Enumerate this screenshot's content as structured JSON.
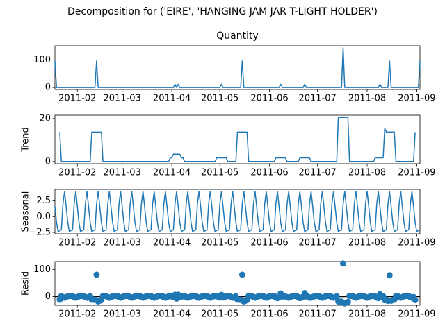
{
  "title": "Decomposition for ('EIRE', 'HANGING JAM JAR T-LIGHT HOLDER')",
  "chart_data": {
    "color": "#1f77b4",
    "xlim": [
      14992,
      15220
    ],
    "xticks": [
      {
        "value": 15006,
        "label": "2011-02"
      },
      {
        "value": 15034,
        "label": "2011-03"
      },
      {
        "value": 15065,
        "label": "2011-04"
      },
      {
        "value": 15095,
        "label": "2011-05"
      },
      {
        "value": 15126,
        "label": "2011-06"
      },
      {
        "value": 15156,
        "label": "2011-07"
      },
      {
        "value": 15187,
        "label": "2011-08"
      },
      {
        "value": 15218,
        "label": "2011-09"
      }
    ],
    "x": [
      14992,
      14993,
      14994,
      14995,
      14996,
      14997,
      14998,
      14999,
      15000,
      15001,
      15002,
      15003,
      15004,
      15005,
      15006,
      15007,
      15008,
      15009,
      15010,
      15011,
      15012,
      15013,
      15014,
      15015,
      15016,
      15017,
      15018,
      15019,
      15020,
      15021,
      15022,
      15023,
      15024,
      15025,
      15026,
      15027,
      15028,
      15029,
      15030,
      15031,
      15032,
      15033,
      15034,
      15035,
      15036,
      15037,
      15038,
      15039,
      15040,
      15041,
      15042,
      15043,
      15044,
      15045,
      15046,
      15047,
      15048,
      15049,
      15050,
      15051,
      15052,
      15053,
      15054,
      15055,
      15056,
      15057,
      15058,
      15059,
      15060,
      15061,
      15062,
      15063,
      15064,
      15065,
      15066,
      15067,
      15068,
      15069,
      15070,
      15071,
      15072,
      15073,
      15074,
      15075,
      15076,
      15077,
      15078,
      15079,
      15080,
      15081,
      15082,
      15083,
      15084,
      15085,
      15086,
      15087,
      15088,
      15089,
      15090,
      15091,
      15092,
      15093,
      15094,
      15095,
      15096,
      15097,
      15098,
      15099,
      15100,
      15101,
      15102,
      15103,
      15104,
      15105,
      15106,
      15107,
      15108,
      15109,
      15110,
      15111,
      15112,
      15113,
      15114,
      15115,
      15116,
      15117,
      15118,
      15119,
      15120,
      15121,
      15122,
      15123,
      15124,
      15125,
      15126,
      15127,
      15128,
      15129,
      15130,
      15131,
      15132,
      15133,
      15134,
      15135,
      15136,
      15137,
      15138,
      15139,
      15140,
      15141,
      15142,
      15143,
      15144,
      15145,
      15146,
      15147,
      15148,
      15149,
      15150,
      15151,
      15152,
      15153,
      15154,
      15155,
      15156,
      15157,
      15158,
      15159,
      15160,
      15161,
      15162,
      15163,
      15164,
      15165,
      15166,
      15167,
      15168,
      15169,
      15170,
      15171,
      15172,
      15173,
      15174,
      15175,
      15176,
      15177,
      15178,
      15179,
      15180,
      15181,
      15182,
      15183,
      15184,
      15185,
      15186,
      15187,
      15188,
      15189,
      15190,
      15191,
      15192,
      15193,
      15194,
      15195,
      15196,
      15197,
      15198,
      15199,
      15200,
      15201,
      15202,
      15203,
      15204,
      15205,
      15206,
      15207,
      15208,
      15209,
      15210,
      15211,
      15212,
      15213,
      15214,
      15215,
      15216,
      15217,
      15218,
      15219,
      15220
    ],
    "panels": [
      {
        "type": "line",
        "title": "Quantity",
        "ylim": [
          -7.2,
          151.2
        ],
        "yticks": [
          0,
          100
        ],
        "values": [
          96,
          0,
          0,
          0,
          0,
          0,
          0,
          0,
          0,
          0,
          0,
          0,
          0,
          0,
          0,
          0,
          0,
          0,
          0,
          0,
          0,
          0,
          0,
          0,
          0,
          0,
          96,
          0,
          0,
          0,
          0,
          0,
          0,
          0,
          0,
          0,
          0,
          0,
          0,
          0,
          0,
          0,
          0,
          0,
          0,
          0,
          0,
          0,
          0,
          0,
          0,
          0,
          0,
          0,
          0,
          0,
          0,
          0,
          0,
          0,
          0,
          0,
          0,
          0,
          0,
          0,
          0,
          0,
          0,
          0,
          0,
          0,
          0,
          0,
          0,
          12,
          0,
          12,
          0,
          0,
          0,
          0,
          0,
          0,
          0,
          0,
          0,
          0,
          0,
          0,
          0,
          0,
          0,
          0,
          0,
          0,
          0,
          0,
          0,
          0,
          0,
          0,
          0,
          0,
          12,
          0,
          0,
          0,
          0,
          0,
          0,
          0,
          0,
          0,
          0,
          0,
          0,
          96,
          0,
          0,
          0,
          0,
          0,
          0,
          0,
          0,
          0,
          0,
          0,
          0,
          0,
          0,
          0,
          0,
          0,
          0,
          0,
          0,
          0,
          0,
          0,
          12,
          0,
          0,
          0,
          0,
          0,
          0,
          0,
          0,
          0,
          0,
          0,
          0,
          0,
          0,
          12,
          0,
          0,
          0,
          0,
          0,
          0,
          0,
          0,
          0,
          0,
          0,
          0,
          0,
          0,
          0,
          0,
          0,
          0,
          0,
          0,
          0,
          0,
          0,
          144,
          0,
          0,
          0,
          0,
          0,
          0,
          0,
          0,
          0,
          0,
          0,
          0,
          0,
          0,
          0,
          0,
          0,
          0,
          0,
          0,
          0,
          0,
          12,
          0,
          0,
          0,
          0,
          0,
          96,
          0,
          0,
          0,
          0,
          0,
          0,
          0,
          0,
          0,
          0,
          0,
          0,
          0,
          0,
          0,
          0,
          0,
          0,
          96
        ]
      },
      {
        "type": "line",
        "ylabel": "Trend",
        "ylim": [
          -1.03,
          21.6
        ],
        "yticks": [
          0,
          20
        ],
        "values": [
          null,
          null,
          null,
          13.71,
          0,
          0,
          0,
          0,
          0,
          0,
          0,
          0,
          0,
          0,
          0,
          0,
          0,
          0,
          0,
          0,
          0,
          0,
          0,
          13.71,
          13.71,
          13.71,
          13.71,
          13.71,
          13.71,
          13.71,
          0,
          0,
          0,
          0,
          0,
          0,
          0,
          0,
          0,
          0,
          0,
          0,
          0,
          0,
          0,
          0,
          0,
          0,
          0,
          0,
          0,
          0,
          0,
          0,
          0,
          0,
          0,
          0,
          0,
          0,
          0,
          0,
          0,
          0,
          0,
          0,
          0,
          0,
          0,
          0,
          0,
          0,
          1.71,
          1.71,
          3.43,
          3.43,
          3.43,
          3.43,
          3.43,
          1.71,
          1.71,
          0,
          0,
          0,
          0,
          0,
          0,
          0,
          0,
          0,
          0,
          0,
          0,
          0,
          0,
          0,
          0,
          0,
          0,
          0,
          0,
          1.71,
          1.71,
          1.71,
          1.71,
          1.71,
          1.71,
          1.71,
          0,
          0,
          0,
          0,
          0,
          0,
          13.71,
          13.71,
          13.71,
          13.71,
          13.71,
          13.71,
          13.71,
          0,
          0,
          0,
          0,
          0,
          0,
          0,
          0,
          0,
          0,
          0,
          0,
          0,
          0,
          0,
          0,
          0,
          1.71,
          1.71,
          1.71,
          1.71,
          1.71,
          1.71,
          1.71,
          0,
          0,
          0,
          0,
          0,
          0,
          0,
          0,
          1.71,
          1.71,
          1.71,
          1.71,
          1.71,
          1.71,
          1.71,
          0,
          0,
          0,
          0,
          0,
          0,
          0,
          0,
          0,
          0,
          0,
          0,
          0,
          0,
          0,
          0,
          0,
          20.57,
          20.57,
          20.57,
          20.57,
          20.57,
          20.57,
          20.57,
          0,
          0,
          0,
          0,
          0,
          0,
          0,
          0,
          0,
          0,
          0,
          0,
          0,
          0,
          0,
          0,
          1.71,
          1.71,
          1.71,
          1.71,
          1.71,
          1.71,
          15.43,
          13.71,
          13.71,
          13.71,
          13.71,
          13.71,
          13.71,
          0,
          0,
          0,
          0,
          0,
          0,
          0,
          0,
          0,
          0,
          0,
          0,
          13.71,
          null,
          null,
          null
        ]
      },
      {
        "type": "line",
        "ylabel": "Seasonal",
        "ylim": [
          -2.72,
          4.32
        ],
        "yticks": [
          {
            "value": -2.5,
            "label": "−2.5"
          },
          {
            "value": 0,
            "label": "0.0"
          },
          {
            "value": 2.5,
            "label": "2.5"
          }
        ],
        "values": [
          1.6,
          -0.9,
          -2.4,
          -2.2,
          -2.1,
          2.0,
          4.0,
          1.6,
          -0.9,
          -2.4,
          -2.2,
          -2.1,
          2.0,
          4.0,
          1.6,
          -0.9,
          -2.4,
          -2.2,
          -2.1,
          2.0,
          4.0,
          1.6,
          -0.9,
          -2.4,
          -2.2,
          -2.1,
          2.0,
          4.0,
          1.6,
          -0.9,
          -2.4,
          -2.2,
          -2.1,
          2.0,
          4.0,
          1.6,
          -0.9,
          -2.4,
          -2.2,
          -2.1,
          2.0,
          4.0,
          1.6,
          -0.9,
          -2.4,
          -2.2,
          -2.1,
          2.0,
          4.0,
          1.6,
          -0.9,
          -2.4,
          -2.2,
          -2.1,
          2.0,
          4.0,
          1.6,
          -0.9,
          -2.4,
          -2.2,
          -2.1,
          2.0,
          4.0,
          1.6,
          -0.9,
          -2.4,
          -2.2,
          -2.1,
          2.0,
          4.0,
          1.6,
          -0.9,
          -2.4,
          -2.2,
          -2.1,
          2.0,
          4.0,
          1.6,
          -0.9,
          -2.4,
          -2.2,
          -2.1,
          2.0,
          4.0,
          1.6,
          -0.9,
          -2.4,
          -2.2,
          -2.1,
          2.0,
          4.0,
          1.6,
          -0.9,
          -2.4,
          -2.2,
          -2.1,
          2.0,
          4.0,
          1.6,
          -0.9,
          -2.4,
          -2.2,
          -2.1,
          2.0,
          4.0,
          1.6,
          -0.9,
          -2.4,
          -2.2,
          -2.1,
          2.0,
          4.0,
          1.6,
          -0.9,
          -2.4,
          -2.2,
          -2.1,
          2.0,
          4.0,
          1.6,
          -0.9,
          -2.4,
          -2.2,
          -2.1,
          2.0,
          4.0,
          1.6,
          -0.9,
          -2.4,
          -2.2,
          -2.1,
          2.0,
          4.0,
          1.6,
          -0.9,
          -2.4,
          -2.2,
          -2.1,
          2.0,
          4.0,
          1.6,
          -0.9,
          -2.4,
          -2.2,
          -2.1,
          2.0,
          4.0,
          1.6,
          -0.9,
          -2.4,
          -2.2,
          -2.1,
          2.0,
          4.0,
          1.6,
          -0.9,
          -2.4,
          -2.2,
          -2.1,
          2.0,
          4.0,
          1.6,
          -0.9,
          -2.4,
          -2.2,
          -2.1,
          2.0,
          4.0,
          1.6,
          -0.9,
          -2.4,
          -2.2,
          -2.1,
          2.0,
          4.0,
          1.6,
          -0.9,
          -2.4,
          -2.2,
          -2.1,
          2.0,
          4.0,
          1.6,
          -0.9,
          -2.4,
          -2.2,
          -2.1,
          2.0,
          4.0,
          1.6,
          -0.9,
          -2.4,
          -2.2,
          -2.1,
          2.0,
          4.0,
          1.6,
          -0.9,
          -2.4,
          -2.2,
          -2.1,
          2.0,
          4.0,
          1.6,
          -0.9,
          -2.4,
          -2.2,
          -2.1,
          2.0,
          4.0,
          1.6,
          -0.9,
          -2.4,
          -2.2,
          -2.1,
          2.0,
          4.0,
          1.6,
          -0.9,
          -2.4,
          -2.2,
          -2.1,
          2.0,
          4.0,
          1.6,
          -0.9,
          -2.4,
          -2.2,
          -2.1
        ]
      },
      {
        "type": "scatter",
        "ylabel": "Resid",
        "ylim": [
          -31.87,
          128.73
        ],
        "yticks": [
          0,
          100
        ],
        "values": [
          null,
          null,
          null,
          -11.51,
          2.1,
          -2.0,
          -4.0,
          -1.6,
          0.9,
          2.4,
          2.2,
          2.1,
          -2.0,
          -4.0,
          -1.6,
          0.9,
          2.4,
          2.2,
          2.1,
          -2.0,
          -4.0,
          -1.6,
          0.9,
          -11.31,
          -11.51,
          -11.61,
          80.29,
          -17.71,
          -15.31,
          -12.81,
          2.4,
          2.2,
          2.1,
          -2.0,
          -4.0,
          -1.6,
          0.9,
          2.4,
          2.2,
          2.1,
          -2.0,
          -4.0,
          -1.6,
          0.9,
          2.4,
          2.2,
          2.1,
          -2.0,
          -4.0,
          -1.6,
          0.9,
          2.4,
          2.2,
          2.1,
          -2.0,
          -4.0,
          -1.6,
          0.9,
          2.4,
          2.2,
          2.1,
          -2.0,
          -4.0,
          -1.6,
          0.9,
          2.4,
          2.2,
          2.1,
          -2.0,
          -4.0,
          -1.6,
          0.9,
          0.69,
          0.49,
          -1.33,
          6.57,
          -7.43,
          6.97,
          -2.53,
          0.69,
          0.49,
          2.1,
          -2.0,
          -4.0,
          -1.6,
          0.9,
          2.4,
          2.2,
          2.1,
          -2.0,
          -4.0,
          -1.6,
          0.9,
          2.4,
          2.2,
          2.1,
          -2.0,
          -4.0,
          -1.6,
          0.9,
          2.4,
          0.49,
          0.39,
          -3.71,
          6.29,
          -3.31,
          -0.81,
          0.69,
          2.2,
          2.1,
          -2.0,
          -4.0,
          -1.6,
          0.9,
          -11.31,
          -11.51,
          -11.61,
          80.29,
          -17.71,
          -15.31,
          -12.81,
          2.4,
          2.2,
          2.1,
          -2.0,
          -4.0,
          -1.6,
          0.9,
          2.4,
          2.2,
          2.1,
          -2.0,
          -4.0,
          -1.6,
          0.9,
          2.4,
          2.2,
          2.1,
          -3.71,
          -5.71,
          -3.31,
          11.19,
          0.69,
          0.49,
          0.39,
          -2.0,
          -4.0,
          -1.6,
          0.9,
          2.4,
          2.2,
          2.1,
          -2.0,
          -5.71,
          -3.31,
          -0.81,
          12.69,
          0.49,
          0.39,
          -3.71,
          -4.0,
          -1.6,
          0.9,
          2.4,
          2.2,
          2.1,
          -2.0,
          -4.0,
          -1.6,
          0.9,
          2.4,
          2.2,
          2.1,
          -2.0,
          -4.0,
          -1.6,
          0.9,
          -18.17,
          -18.37,
          -18.47,
          121.43,
          -24.57,
          -22.17,
          -19.67,
          2.4,
          2.2,
          2.1,
          -2.0,
          -4.0,
          -1.6,
          0.9,
          2.4,
          2.2,
          2.1,
          -2.0,
          -4.0,
          -1.6,
          0.9,
          2.4,
          2.2,
          0.39,
          -3.71,
          -5.71,
          8.69,
          -0.81,
          0.69,
          -13.23,
          -11.61,
          -15.71,
          78.29,
          -15.31,
          -12.81,
          -11.31,
          2.2,
          2.1,
          -2.0,
          -4.0,
          -1.6,
          0.9,
          2.4,
          2.2,
          2.1,
          -2.0,
          -4.0,
          -1.6,
          -12.81,
          null,
          null,
          null
        ]
      }
    ]
  }
}
